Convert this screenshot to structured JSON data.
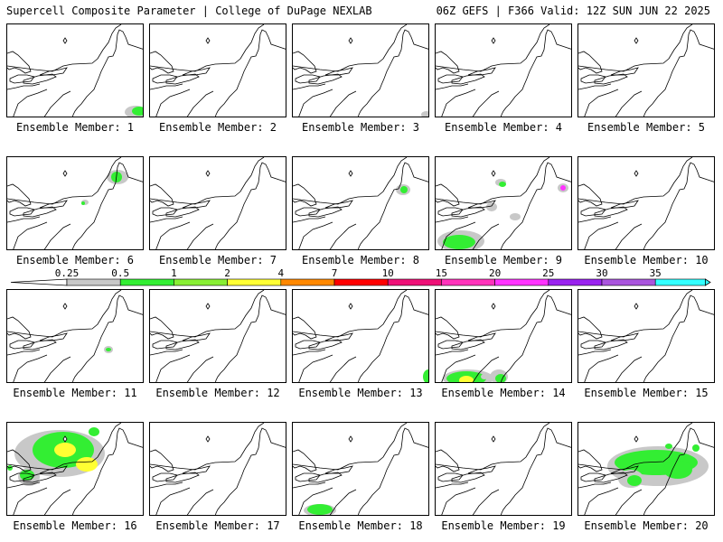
{
  "header": {
    "left_title": "Supercell Composite Parameter | College of DuPage NEXLAB",
    "right_title": "06Z GEFS | F366 Valid: 12Z SUN JUN 22 2025"
  },
  "caption_prefix": "Ensemble Member:",
  "members": [
    {
      "id": "1"
    },
    {
      "id": "2"
    },
    {
      "id": "3"
    },
    {
      "id": "4"
    },
    {
      "id": "5"
    },
    {
      "id": "6"
    },
    {
      "id": "7"
    },
    {
      "id": "8"
    },
    {
      "id": "9"
    },
    {
      "id": "10"
    },
    {
      "id": "11"
    },
    {
      "id": "12"
    },
    {
      "id": "13"
    },
    {
      "id": "14"
    },
    {
      "id": "15"
    },
    {
      "id": "16"
    },
    {
      "id": "17"
    },
    {
      "id": "18"
    },
    {
      "id": "19"
    },
    {
      "id": "20"
    }
  ],
  "legend": {
    "labels": [
      "0.25",
      "0.5",
      "1",
      "2",
      "4",
      "7",
      "10",
      "15",
      "20",
      "25",
      "30",
      "35"
    ],
    "colors": [
      "#c8c8c8",
      "#33ee33",
      "#88ee33",
      "#ffff33",
      "#ff8800",
      "#ff0000",
      "#ee1177",
      "#ff33bb",
      "#ff33ff",
      "#9922ee",
      "#aa55dd",
      "#33ffff"
    ]
  }
}
